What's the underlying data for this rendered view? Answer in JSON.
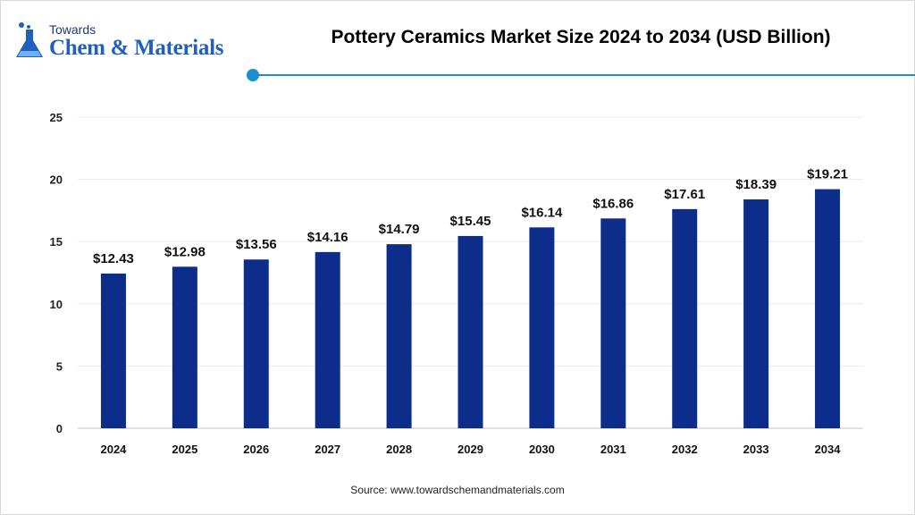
{
  "brand": {
    "line1": "Towards",
    "line2": "Chem & Materials",
    "logo_icon": "flask-icon"
  },
  "title": "Pottery Ceramics Market Size 2024 to 2034 (USD Billion)",
  "source": "Source: www.towardschemandmaterials.com",
  "colors": {
    "bar": "#0c2e8a",
    "accent": "#1a8fd3",
    "grid": "#ececec",
    "axis": "#bfbfbf"
  },
  "chart_data": {
    "type": "bar",
    "title": "Pottery Ceramics Market Size 2024 to 2034 (USD Billion)",
    "categories": [
      "2024",
      "2025",
      "2026",
      "2027",
      "2028",
      "2029",
      "2030",
      "2031",
      "2032",
      "2033",
      "2034"
    ],
    "values": [
      12.43,
      12.98,
      13.56,
      14.16,
      14.79,
      15.45,
      16.14,
      16.86,
      17.61,
      18.39,
      19.21
    ],
    "data_labels": [
      "$12.43",
      "$12.98",
      "$13.56",
      "$14.16",
      "$14.79",
      "$15.45",
      "$16.14",
      "$16.86",
      "$17.61",
      "$18.39",
      "$19.21"
    ],
    "yticks": [
      "0",
      "5",
      "10",
      "15",
      "20",
      "25"
    ],
    "ylim": [
      0,
      25
    ],
    "xlabel": "",
    "ylabel": "",
    "grid": true,
    "legend": false
  }
}
